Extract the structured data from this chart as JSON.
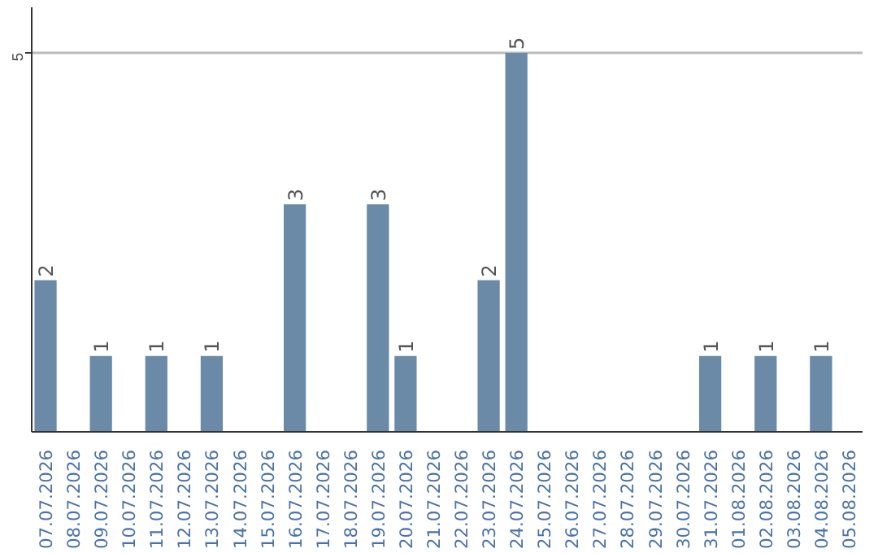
{
  "chart_data": {
    "type": "bar",
    "categories": [
      "07.07.2026",
      "08.07.2026",
      "09.07.2026",
      "10.07.2026",
      "11.07.2026",
      "12.07.2026",
      "13.07.2026",
      "14.07.2026",
      "15.07.2026",
      "16.07.2026",
      "17.07.2026",
      "18.07.2026",
      "19.07.2026",
      "20.07.2026",
      "21.07.2026",
      "22.07.2026",
      "23.07.2026",
      "24.07.2026",
      "25.07.2026",
      "26.07.2026",
      "27.07.2026",
      "28.07.2026",
      "29.07.2026",
      "30.07.2026",
      "31.07.2026",
      "01.08.2026",
      "02.08.2026",
      "03.08.2026",
      "04.08.2026",
      "05.08.2026"
    ],
    "values": [
      2,
      null,
      1,
      null,
      1,
      null,
      1,
      null,
      null,
      3,
      null,
      null,
      3,
      1,
      null,
      null,
      2,
      5,
      null,
      null,
      null,
      null,
      null,
      null,
      1,
      null,
      1,
      null,
      1,
      null
    ],
    "color": "#6a8aa8",
    "ylim": [
      0,
      5.6
    ],
    "yticks": [
      5
    ],
    "grid": "y",
    "data_labels": true
  }
}
